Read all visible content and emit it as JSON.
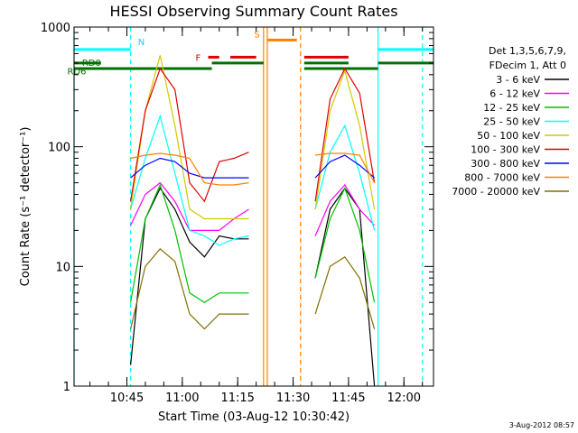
{
  "chart_data": {
    "type": "line",
    "title": "HESSI Observing Summary Count Rates",
    "xlabel": "Start Time (03-Aug-12 10:30:42)",
    "ylabel": "Count Rate (s⁻¹ detector⁻¹)",
    "yscale": "log",
    "ylim": [
      1,
      1000
    ],
    "xlim": [
      "10:30:42",
      "12:08:00"
    ],
    "x_ticks": [
      "10:45",
      "11:00",
      "11:15",
      "11:30",
      "11:45",
      "12:00"
    ],
    "y_ticks": [
      "1",
      "10",
      "100",
      "1000"
    ],
    "legend_title": [
      "Det 1,3,5,6,7,9,",
      "FDecim 1, Att 0"
    ],
    "legend_position": "right",
    "timestamp": "3-Aug-2012 08:57",
    "series": [
      {
        "name": "3 - 6 keV",
        "color": "#000000",
        "x": [
          "10:46",
          "10:50",
          "10:54",
          "10:58",
          "11:02",
          "11:06",
          "11:10",
          "11:14",
          "11:18",
          "11:36",
          "11:40",
          "11:44",
          "11:48",
          "11:52"
        ],
        "values": [
          1.5,
          25,
          45,
          30,
          16,
          12,
          18,
          17,
          17,
          8,
          30,
          45,
          30,
          1
        ]
      },
      {
        "name": "6 - 12 keV",
        "color": "#ff00ff",
        "x": [
          "10:46",
          "10:50",
          "10:54",
          "10:58",
          "11:02",
          "11:06",
          "11:10",
          "11:14",
          "11:18",
          "11:36",
          "11:40",
          "11:44",
          "11:48",
          "11:52"
        ],
        "values": [
          22,
          40,
          50,
          35,
          20,
          20,
          20,
          25,
          30,
          18,
          35,
          48,
          30,
          22
        ]
      },
      {
        "name": "12 - 25 keV",
        "color": "#00c000",
        "x": [
          "10:46",
          "10:50",
          "10:54",
          "10:58",
          "11:02",
          "11:06",
          "11:10",
          "11:14",
          "11:18",
          "11:36",
          "11:40",
          "11:44",
          "11:48",
          "11:52"
        ],
        "values": [
          5,
          25,
          48,
          20,
          6,
          5,
          6,
          6,
          6,
          8,
          25,
          45,
          20,
          5
        ]
      },
      {
        "name": "25 - 50 keV",
        "color": "#00ffff",
        "x": [
          "10:46",
          "10:50",
          "10:54",
          "10:58",
          "11:02",
          "11:06",
          "11:10",
          "11:14",
          "11:18",
          "11:36",
          "11:40",
          "11:44",
          "11:48",
          "11:52"
        ],
        "values": [
          30,
          80,
          180,
          60,
          20,
          18,
          15,
          17,
          18,
          30,
          90,
          150,
          60,
          20
        ]
      },
      {
        "name": "50 - 100 keV",
        "color": "#d4c800",
        "x": [
          "10:46",
          "10:50",
          "10:54",
          "10:58",
          "11:02",
          "11:06",
          "11:10",
          "11:14",
          "11:18",
          "11:36",
          "11:40",
          "11:44",
          "11:48",
          "11:52"
        ],
        "values": [
          30,
          200,
          580,
          150,
          30,
          25,
          25,
          25,
          25,
          30,
          200,
          430,
          150,
          30
        ]
      },
      {
        "name": "100 - 300 keV",
        "color": "#e00000",
        "x": [
          "10:46",
          "10:50",
          "10:54",
          "10:58",
          "11:02",
          "11:06",
          "11:10",
          "11:14",
          "11:18",
          "11:36",
          "11:40",
          "11:44",
          "11:48",
          "11:52"
        ],
        "values": [
          35,
          200,
          450,
          300,
          50,
          35,
          75,
          80,
          90,
          35,
          250,
          450,
          280,
          50
        ]
      },
      {
        "name": "300 - 800 keV",
        "color": "#0000ff",
        "x": [
          "10:46",
          "10:50",
          "10:54",
          "10:58",
          "11:02",
          "11:06",
          "11:10",
          "11:14",
          "11:18",
          "11:36",
          "11:40",
          "11:44",
          "11:48",
          "11:52"
        ],
        "values": [
          55,
          70,
          80,
          75,
          60,
          55,
          55,
          55,
          55,
          55,
          75,
          85,
          70,
          55
        ]
      },
      {
        "name": "800 - 7000 keV",
        "color": "#ff8000",
        "x": [
          "10:46",
          "10:50",
          "10:54",
          "10:58",
          "11:02",
          "11:06",
          "11:10",
          "11:14",
          "11:18",
          "11:36",
          "11:40",
          "11:44",
          "11:48",
          "11:52"
        ],
        "values": [
          80,
          85,
          88,
          85,
          80,
          50,
          48,
          48,
          50,
          85,
          88,
          88,
          85,
          50
        ]
      },
      {
        "name": "7000 - 20000 keV",
        "color": "#807000",
        "x": [
          "10:46",
          "10:50",
          "10:54",
          "10:58",
          "11:02",
          "11:06",
          "11:10",
          "11:14",
          "11:18",
          "11:36",
          "11:40",
          "11:44",
          "11:48",
          "11:52"
        ],
        "values": [
          3,
          10,
          14,
          11,
          4,
          3,
          4,
          4,
          4,
          4,
          10,
          12,
          8,
          3
        ]
      }
    ],
    "annotations": [
      {
        "label": "N",
        "color": "#00d8ff"
      },
      {
        "label": "F",
        "color": "#e00000"
      },
      {
        "label": "S",
        "color": "#ff8000"
      },
      {
        "label": "RD0",
        "color": "#007000"
      },
      {
        "label": "RD6",
        "color": "#007000"
      }
    ],
    "flag_bars": [
      {
        "name": "night",
        "color": "#00ffff",
        "level": 650,
        "segments": [
          [
            "10:30:42",
            "10:46"
          ],
          [
            "11:53",
            "12:08"
          ]
        ]
      },
      {
        "name": "flare",
        "color": "#e00000",
        "level": 560,
        "segments": [
          [
            "11:07",
            "11:10"
          ],
          [
            "11:13",
            "11:20"
          ],
          [
            "11:33",
            "11:45"
          ]
        ]
      },
      {
        "name": "saa",
        "color": "#ff8000",
        "level": 780,
        "segments": [
          [
            "11:23",
            "11:31"
          ]
        ]
      },
      {
        "name": "decim0",
        "color": "#007000",
        "level": 500,
        "segments": [
          [
            "10:30:42",
            "10:38"
          ],
          [
            "11:08",
            "11:22"
          ],
          [
            "11:33",
            "11:45"
          ],
          [
            "11:53",
            "12:08"
          ]
        ]
      },
      {
        "name": "decim6",
        "color": "#007000",
        "level": 450,
        "segments": [
          [
            "10:30:42",
            "11:08"
          ],
          [
            "11:33",
            "11:53"
          ]
        ]
      }
    ],
    "vertical_markers": [
      {
        "time": "10:30:42",
        "color": "#00ffff",
        "style": "solid"
      },
      {
        "time": "10:46",
        "color": "#00ffff",
        "style": "dashed"
      },
      {
        "time": "11:22",
        "color": "#ff8000",
        "style": "solid"
      },
      {
        "time": "11:23",
        "color": "#ff8000",
        "style": "solid"
      },
      {
        "time": "11:32",
        "color": "#ff8000",
        "style": "dashed"
      },
      {
        "time": "11:53",
        "color": "#00ffff",
        "style": "solid"
      },
      {
        "time": "12:05",
        "color": "#00ffff",
        "style": "dashed"
      }
    ]
  }
}
